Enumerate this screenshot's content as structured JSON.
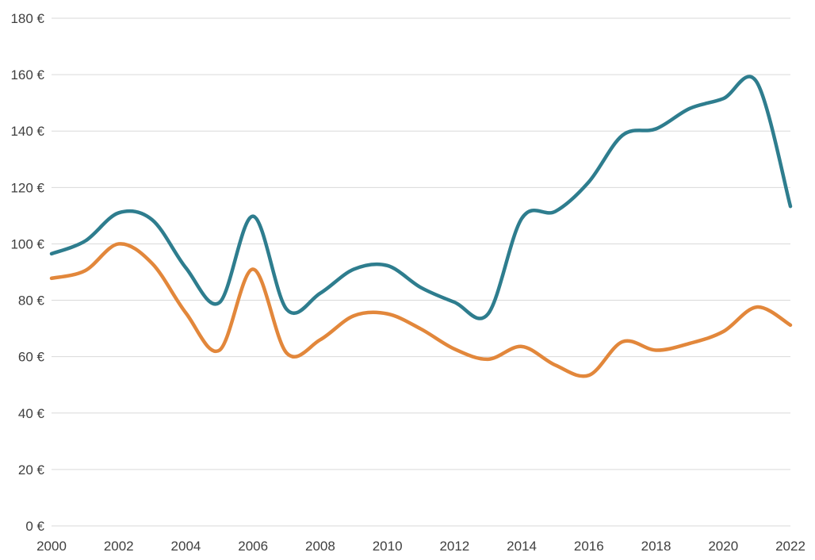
{
  "chart_data": {
    "type": "line",
    "title": "",
    "xlabel": "",
    "ylabel": "",
    "grid": "horizontal",
    "legend": "none",
    "ylim": [
      0,
      180
    ],
    "y_tick_values": [
      0,
      20,
      40,
      60,
      80,
      100,
      120,
      140,
      160,
      180
    ],
    "y_tick_labels": [
      "0 €",
      "20 €",
      "40 €",
      "60 €",
      "80 €",
      "100 €",
      "120 €",
      "140 €",
      "160 €",
      "180 €"
    ],
    "x_tick_values": [
      2000,
      2002,
      2004,
      2006,
      2008,
      2010,
      2012,
      2014,
      2016,
      2018,
      2020,
      2022
    ],
    "x_tick_labels": [
      "2000",
      "2002",
      "2004",
      "2006",
      "2008",
      "2010",
      "2012",
      "2014",
      "2016",
      "2018",
      "2020",
      "2022"
    ],
    "x": [
      2000,
      2001,
      2002,
      2003,
      2004,
      2005,
      2006,
      2007,
      2008,
      2009,
      2010,
      2011,
      2012,
      2013,
      2014,
      2015,
      2016,
      2017,
      2018,
      2019,
      2020,
      2021,
      2022
    ],
    "series": [
      {
        "name": "teal-line",
        "color": "#2e7d8e",
        "values": [
          96.5,
          101,
          111,
          108.5,
          91.5,
          79.2,
          109.8,
          76.8,
          82.5,
          91,
          92.3,
          84.5,
          79.3,
          75.2,
          109,
          111.5,
          122,
          138.5,
          140.8,
          148,
          151.5,
          157.3,
          113.3
        ]
      },
      {
        "name": "orange-line",
        "color": "#e2873b",
        "values": [
          87.8,
          90.5,
          100,
          93,
          75.5,
          62.3,
          91,
          61.3,
          66,
          74.5,
          75.2,
          69.8,
          62.7,
          59.1,
          63.6,
          57,
          53.4,
          65.3,
          62.3,
          64.7,
          68.9,
          77.6,
          71.2
        ]
      }
    ],
    "grid_color": "#d9d9d9",
    "tick_label_color": "#3f3f3f"
  }
}
